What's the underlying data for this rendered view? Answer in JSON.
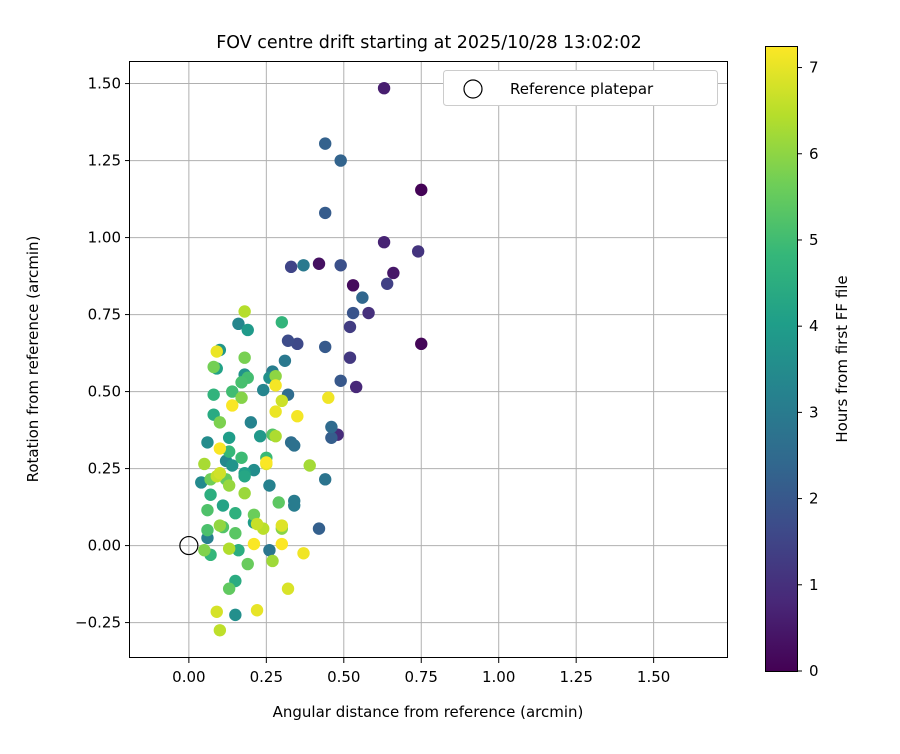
{
  "chart_data": {
    "type": "scatter",
    "title": "FOV centre drift starting at 2025/10/28 13:02:02",
    "xlabel": "Angular distance from reference (arcmin)",
    "ylabel": "Rotation from reference (arcmin)",
    "xlim": [
      -0.19,
      1.74
    ],
    "ylim": [
      -0.365,
      1.57
    ],
    "xticks": [
      0.0,
      0.25,
      0.5,
      0.75,
      1.0,
      1.25,
      1.5
    ],
    "xtick_labels": [
      "0.00",
      "0.25",
      "0.50",
      "0.75",
      "1.00",
      "1.25",
      "1.50"
    ],
    "yticks": [
      -0.25,
      0.0,
      0.25,
      0.5,
      0.75,
      1.0,
      1.25,
      1.5
    ],
    "ytick_labels": [
      "−0.25",
      "0.00",
      "0.25",
      "0.50",
      "0.75",
      "1.00",
      "1.25",
      "1.50"
    ],
    "grid": true,
    "legend": {
      "position": "top-right",
      "entries": [
        "Reference platepar"
      ]
    },
    "reference": {
      "x": 0.0,
      "y": 0.0,
      "label": "Reference platepar"
    },
    "colorbar": {
      "label": "Hours from first FF file",
      "range": [
        0,
        7.25
      ],
      "ticks": [
        0,
        1,
        2,
        3,
        4,
        5,
        6,
        7
      ],
      "tick_labels": [
        "0",
        "1",
        "2",
        "3",
        "4",
        "5",
        "6",
        "7"
      ],
      "colormap": [
        "#440154",
        "#482878",
        "#3e4989",
        "#31688e",
        "#26828e",
        "#1f9e89",
        "#35b779",
        "#6ece58",
        "#b5de2b",
        "#fde725"
      ]
    },
    "points": [
      {
        "x": 0.75,
        "y": 1.155,
        "h": 0.05
      },
      {
        "x": 0.75,
        "y": 0.655,
        "h": 0.1
      },
      {
        "x": 0.53,
        "y": 0.845,
        "h": 0.2
      },
      {
        "x": 0.42,
        "y": 0.915,
        "h": 0.3
      },
      {
        "x": 0.66,
        "y": 0.885,
        "h": 0.45
      },
      {
        "x": 0.63,
        "y": 1.485,
        "h": 0.6
      },
      {
        "x": 0.63,
        "y": 0.985,
        "h": 0.7
      },
      {
        "x": 0.54,
        "y": 0.515,
        "h": 0.8
      },
      {
        "x": 0.48,
        "y": 0.36,
        "h": 0.9
      },
      {
        "x": 0.58,
        "y": 0.755,
        "h": 1.0
      },
      {
        "x": 0.74,
        "y": 0.955,
        "h": 1.1
      },
      {
        "x": 0.52,
        "y": 0.61,
        "h": 1.2
      },
      {
        "x": 0.52,
        "y": 0.71,
        "h": 1.3
      },
      {
        "x": 0.64,
        "y": 0.85,
        "h": 1.4
      },
      {
        "x": 0.33,
        "y": 0.905,
        "h": 1.5
      },
      {
        "x": 0.35,
        "y": 0.655,
        "h": 1.6
      },
      {
        "x": 0.32,
        "y": 0.665,
        "h": 1.7
      },
      {
        "x": 0.49,
        "y": 0.91,
        "h": 1.8
      },
      {
        "x": 0.53,
        "y": 0.755,
        "h": 1.9
      },
      {
        "x": 0.49,
        "y": 0.535,
        "h": 2.0
      },
      {
        "x": 0.44,
        "y": 0.645,
        "h": 2.05
      },
      {
        "x": 0.44,
        "y": 1.08,
        "h": 2.1
      },
      {
        "x": 0.46,
        "y": 0.35,
        "h": 2.15
      },
      {
        "x": 0.42,
        "y": 0.055,
        "h": 2.2
      },
      {
        "x": 0.44,
        "y": 1.305,
        "h": 2.25
      },
      {
        "x": 0.49,
        "y": 1.25,
        "h": 2.3
      },
      {
        "x": 0.56,
        "y": 0.805,
        "h": 2.4
      },
      {
        "x": 0.46,
        "y": 0.385,
        "h": 2.5
      },
      {
        "x": 0.32,
        "y": 0.49,
        "h": 2.55
      },
      {
        "x": 0.33,
        "y": 0.335,
        "h": 2.6
      },
      {
        "x": 0.34,
        "y": 0.325,
        "h": 2.7
      },
      {
        "x": 0.44,
        "y": 0.215,
        "h": 2.8
      },
      {
        "x": 0.26,
        "y": -0.015,
        "h": 2.85
      },
      {
        "x": 0.31,
        "y": 0.6,
        "h": 2.9
      },
      {
        "x": 0.37,
        "y": 0.91,
        "h": 2.95
      },
      {
        "x": 0.34,
        "y": 0.145,
        "h": 3.0
      },
      {
        "x": 0.34,
        "y": 0.13,
        "h": 3.05
      },
      {
        "x": 0.27,
        "y": 0.565,
        "h": 3.1
      },
      {
        "x": 0.06,
        "y": 0.025,
        "h": 3.15
      },
      {
        "x": 0.26,
        "y": 0.195,
        "h": 3.2
      },
      {
        "x": 0.2,
        "y": 0.4,
        "h": 3.25
      },
      {
        "x": 0.24,
        "y": 0.505,
        "h": 3.3
      },
      {
        "x": 0.16,
        "y": 0.72,
        "h": 3.35
      },
      {
        "x": 0.12,
        "y": 0.275,
        "h": 3.4
      },
      {
        "x": 0.04,
        "y": 0.205,
        "h": 3.45
      },
      {
        "x": 0.06,
        "y": 0.335,
        "h": 3.5
      },
      {
        "x": 0.21,
        "y": 0.245,
        "h": 3.55
      },
      {
        "x": 0.15,
        "y": -0.225,
        "h": 3.6
      },
      {
        "x": 0.26,
        "y": 0.545,
        "h": 3.65
      },
      {
        "x": 0.18,
        "y": 0.555,
        "h": 3.7
      },
      {
        "x": 0.14,
        "y": 0.26,
        "h": 3.75
      },
      {
        "x": 0.1,
        "y": 0.635,
        "h": 3.8
      },
      {
        "x": 0.23,
        "y": 0.355,
        "h": 3.85
      },
      {
        "x": 0.19,
        "y": 0.7,
        "h": 3.9
      },
      {
        "x": 0.21,
        "y": 0.075,
        "h": 3.95
      },
      {
        "x": 0.13,
        "y": 0.35,
        "h": 4.0
      },
      {
        "x": 0.18,
        "y": 0.235,
        "h": 4.1
      },
      {
        "x": 0.09,
        "y": 0.575,
        "h": 4.15
      },
      {
        "x": 0.11,
        "y": 0.13,
        "h": 4.2
      },
      {
        "x": 0.18,
        "y": 0.225,
        "h": 4.3
      },
      {
        "x": 0.08,
        "y": 0.425,
        "h": 4.4
      },
      {
        "x": 0.15,
        "y": -0.115,
        "h": 4.45
      },
      {
        "x": 0.16,
        "y": -0.015,
        "h": 4.5
      },
      {
        "x": 0.07,
        "y": 0.165,
        "h": 4.55
      },
      {
        "x": 0.15,
        "y": 0.105,
        "h": 4.6
      },
      {
        "x": 0.08,
        "y": 0.49,
        "h": 4.7
      },
      {
        "x": 0.3,
        "y": 0.725,
        "h": 4.75
      },
      {
        "x": 0.07,
        "y": -0.03,
        "h": 4.8
      },
      {
        "x": 0.13,
        "y": 0.305,
        "h": 4.85
      },
      {
        "x": 0.25,
        "y": 0.285,
        "h": 4.9
      },
      {
        "x": 0.17,
        "y": 0.285,
        "h": 4.95
      },
      {
        "x": 0.14,
        "y": 0.5,
        "h": 5.0
      },
      {
        "x": 0.19,
        "y": 0.545,
        "h": 5.05
      },
      {
        "x": 0.17,
        "y": 0.53,
        "h": 5.1
      },
      {
        "x": 0.06,
        "y": 0.05,
        "h": 5.15
      },
      {
        "x": 0.06,
        "y": 0.115,
        "h": 5.2
      },
      {
        "x": 0.11,
        "y": 0.06,
        "h": 5.25
      },
      {
        "x": 0.27,
        "y": 0.36,
        "h": 5.3
      },
      {
        "x": 0.15,
        "y": 0.04,
        "h": 5.35
      },
      {
        "x": 0.29,
        "y": 0.14,
        "h": 5.4
      },
      {
        "x": 0.13,
        "y": -0.14,
        "h": 5.45
      },
      {
        "x": 0.12,
        "y": 0.215,
        "h": 5.5
      },
      {
        "x": 0.19,
        "y": -0.06,
        "h": 5.55
      },
      {
        "x": 0.21,
        "y": 0.1,
        "h": 5.6
      },
      {
        "x": 0.07,
        "y": 0.215,
        "h": 5.65
      },
      {
        "x": 0.08,
        "y": 0.58,
        "h": 5.7
      },
      {
        "x": 0.18,
        "y": 0.61,
        "h": 5.75
      },
      {
        "x": 0.1,
        "y": 0.4,
        "h": 5.8
      },
      {
        "x": 0.05,
        "y": -0.015,
        "h": 5.85
      },
      {
        "x": 0.17,
        "y": 0.48,
        "h": 5.9
      },
      {
        "x": 0.3,
        "y": 0.055,
        "h": 5.95
      },
      {
        "x": 0.28,
        "y": 0.55,
        "h": 6.0
      },
      {
        "x": 0.1,
        "y": 0.065,
        "h": 6.05
      },
      {
        "x": 0.13,
        "y": 0.195,
        "h": 6.1
      },
      {
        "x": 0.18,
        "y": 0.17,
        "h": 6.15
      },
      {
        "x": 0.27,
        "y": -0.05,
        "h": 6.2
      },
      {
        "x": 0.39,
        "y": 0.26,
        "h": 6.25
      },
      {
        "x": 0.05,
        "y": 0.265,
        "h": 6.3
      },
      {
        "x": 0.28,
        "y": 0.355,
        "h": 6.35
      },
      {
        "x": 0.13,
        "y": -0.01,
        "h": 6.4
      },
      {
        "x": 0.18,
        "y": 0.76,
        "h": 6.45
      },
      {
        "x": 0.24,
        "y": 0.055,
        "h": 6.5
      },
      {
        "x": 0.1,
        "y": -0.275,
        "h": 6.55
      },
      {
        "x": 0.09,
        "y": 0.225,
        "h": 6.6
      },
      {
        "x": 0.22,
        "y": 0.07,
        "h": 6.65
      },
      {
        "x": 0.3,
        "y": 0.47,
        "h": 6.7
      },
      {
        "x": 0.1,
        "y": 0.235,
        "h": 6.75
      },
      {
        "x": 0.09,
        "y": -0.215,
        "h": 6.8
      },
      {
        "x": 0.32,
        "y": -0.14,
        "h": 6.85
      },
      {
        "x": 0.3,
        "y": 0.065,
        "h": 6.9
      },
      {
        "x": 0.25,
        "y": 0.265,
        "h": 6.95
      },
      {
        "x": 0.22,
        "y": -0.21,
        "h": 7.0
      },
      {
        "x": 0.09,
        "y": 0.63,
        "h": 7.05
      },
      {
        "x": 0.28,
        "y": 0.435,
        "h": 7.05
      },
      {
        "x": 0.37,
        "y": -0.025,
        "h": 7.1
      },
      {
        "x": 0.45,
        "y": 0.48,
        "h": 7.1
      },
      {
        "x": 0.35,
        "y": 0.42,
        "h": 7.15
      },
      {
        "x": 0.28,
        "y": 0.52,
        "h": 7.15
      },
      {
        "x": 0.14,
        "y": 0.455,
        "h": 7.2
      },
      {
        "x": 0.1,
        "y": 0.315,
        "h": 7.2
      },
      {
        "x": 0.21,
        "y": 0.005,
        "h": 7.22
      },
      {
        "x": 0.25,
        "y": 0.27,
        "h": 7.22
      },
      {
        "x": 0.3,
        "y": 0.005,
        "h": 7.24
      }
    ]
  }
}
